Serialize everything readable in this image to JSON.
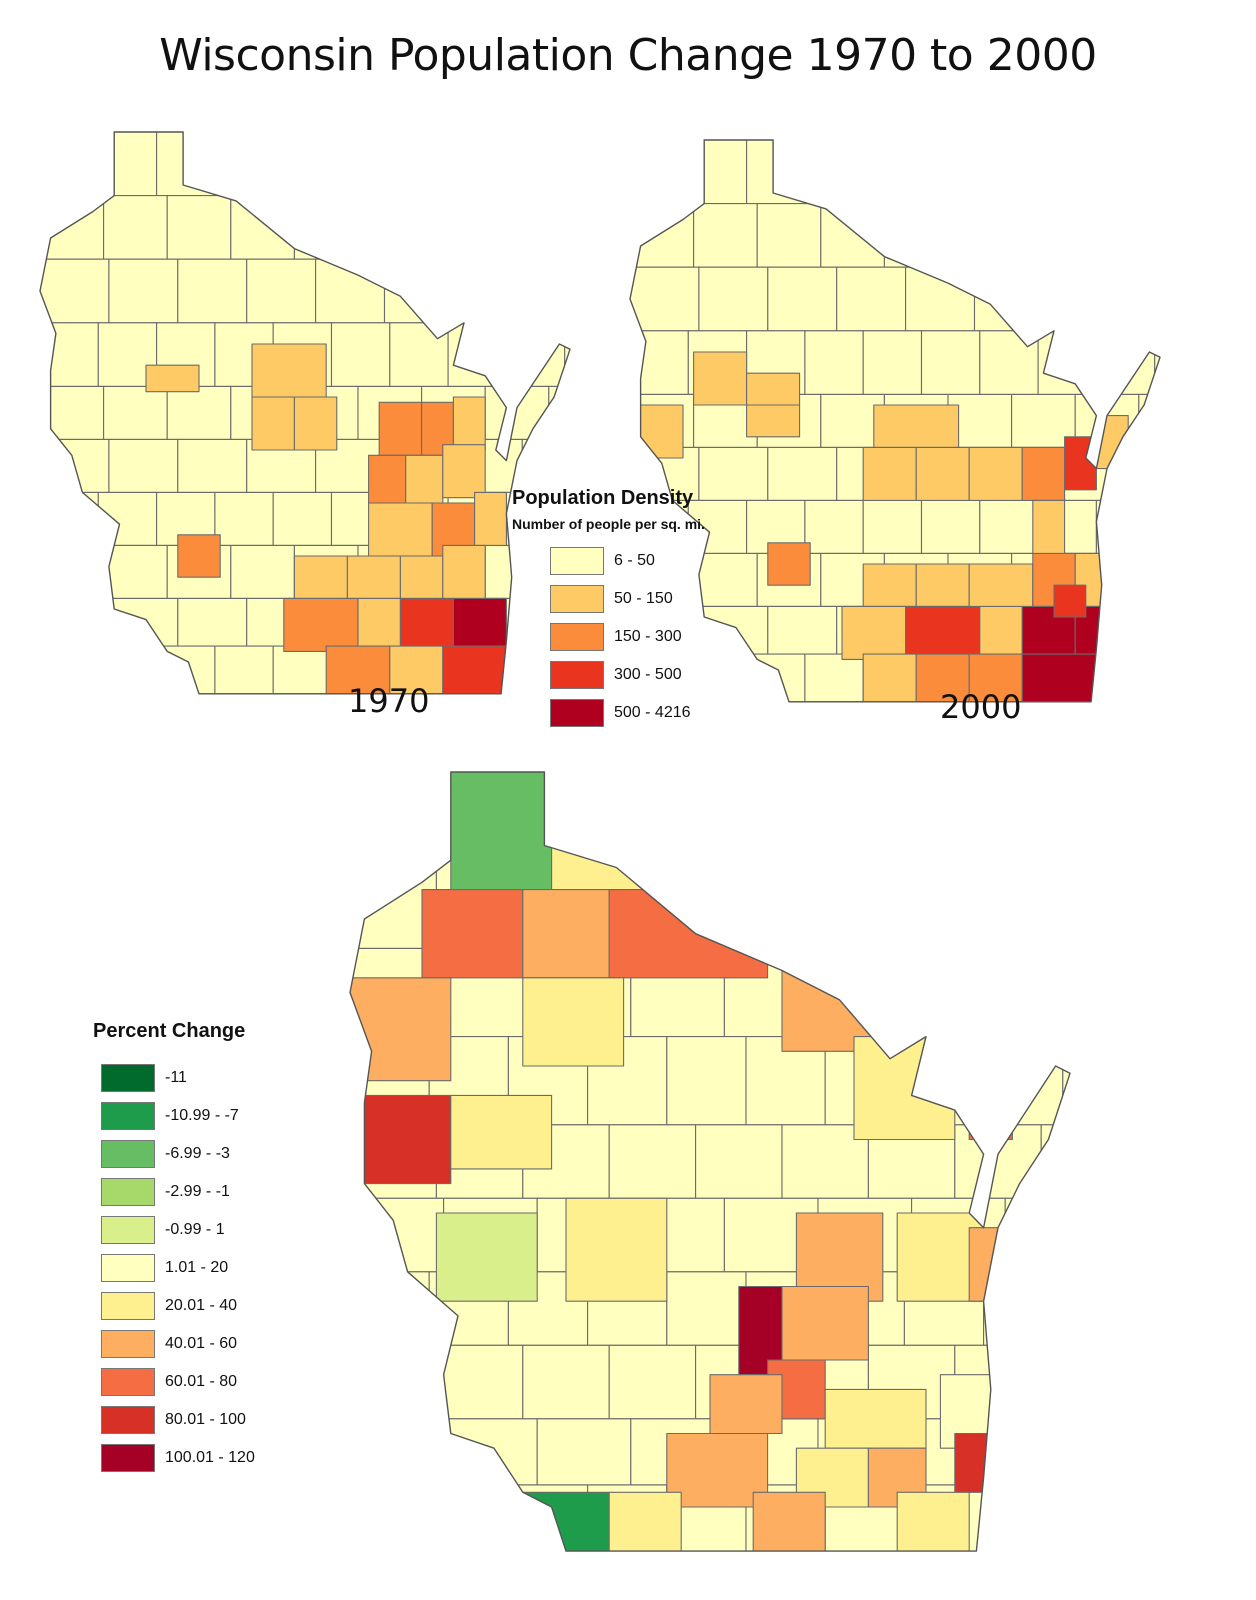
{
  "title": "Wisconsin Population Change 1970 to 2000",
  "maps": {
    "map_1970": {
      "label": "1970",
      "region_colors": {
        "Most counties": "#ffffc0",
        "Lake Michigan shore counties": "#fdca66",
        "Fox River Valley counties": "#fb8c3c",
        "Milwaukee area": "#e9341f",
        "Milwaukee County": "#b0001f"
      }
    },
    "map_2000": {
      "label": "2000"
    },
    "map_change": {}
  },
  "density_legend": {
    "title": "Population Density",
    "subtitle": "Number of people per sq. mi.",
    "items": [
      {
        "label": "6 - 50",
        "color": "#ffffc0"
      },
      {
        "label": "50 - 150",
        "color": "#fdca66"
      },
      {
        "label": "150 - 300",
        "color": "#fb8c3c"
      },
      {
        "label": "300 - 500",
        "color": "#e9341f"
      },
      {
        "label": "500 - 4216",
        "color": "#b0001f"
      }
    ]
  },
  "change_legend": {
    "title": "Percent Change",
    "items": [
      {
        "label": "-11",
        "color": "#006b2c"
      },
      {
        "label": "-10.99 - -7",
        "color": "#1e9c4c"
      },
      {
        "label": "-6.99 - -3",
        "color": "#66bd63"
      },
      {
        "label": "-2.99 - -1",
        "color": "#a6d96a"
      },
      {
        "label": "-0.99 - 1",
        "color": "#d9ef8b"
      },
      {
        "label": "1.01 - 20",
        "color": "#ffffbf"
      },
      {
        "label": "20.01 - 40",
        "color": "#fef08f"
      },
      {
        "label": "40.01 - 60",
        "color": "#fdae61"
      },
      {
        "label": "60.01 - 80",
        "color": "#f46d43"
      },
      {
        "label": "80.01 - 100",
        "color": "#d73027"
      },
      {
        "label": "100.01 - 120",
        "color": "#a50026"
      }
    ]
  }
}
